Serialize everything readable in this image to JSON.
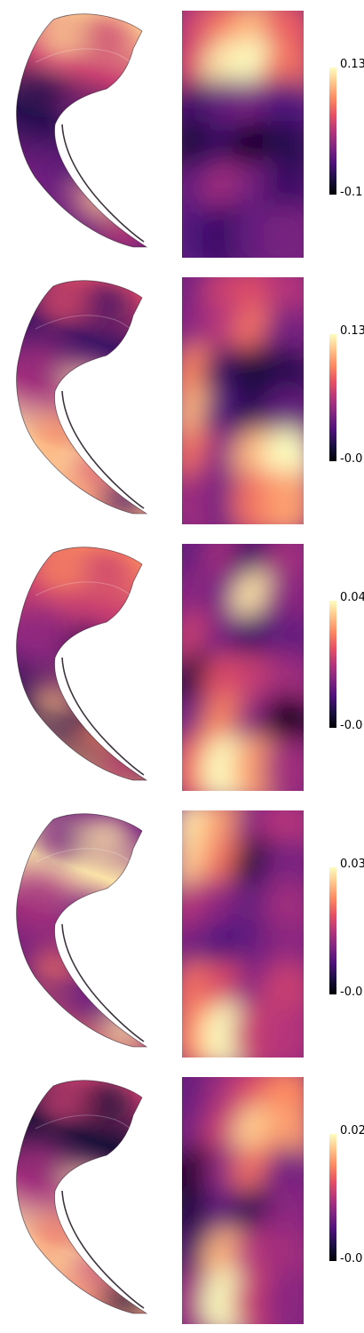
{
  "colormap": [
    "#000004",
    "#1c1044",
    "#4f127b",
    "#812581",
    "#b5367a",
    "#e55064",
    "#fb8761",
    "#fec287",
    "#fcfdbf"
  ],
  "panels": [
    {
      "colorbar": {
        "max_label": "0.13",
        "min_label": "-0.1"
      },
      "surface_pattern": [
        0.9,
        0.55,
        0.15,
        0.35,
        0.3
      ],
      "map_pattern": [
        [
          0.55,
          0.7,
          0.85,
          0.65
        ],
        [
          0.6,
          0.95,
          1.0,
          0.7
        ],
        [
          0.2,
          0.3,
          0.35,
          0.25
        ],
        [
          0.1,
          0.2,
          0.05,
          0.15
        ],
        [
          0.3,
          0.45,
          0.35,
          0.2
        ],
        [
          0.25,
          0.2,
          0.3,
          0.35
        ]
      ]
    },
    {
      "colorbar": {
        "max_label": "0.13",
        "min_label": "-0.0"
      },
      "surface_pattern": [
        0.6,
        0.2,
        0.45,
        0.95,
        0.75
      ],
      "map_pattern": [
        [
          0.35,
          0.55,
          0.6,
          0.5
        ],
        [
          0.4,
          0.5,
          0.7,
          0.35
        ],
        [
          0.75,
          0.2,
          0.1,
          0.15
        ],
        [
          0.85,
          0.25,
          0.15,
          0.3
        ],
        [
          0.7,
          0.4,
          0.85,
          1.0
        ],
        [
          0.45,
          0.35,
          0.7,
          0.8
        ]
      ]
    },
    {
      "colorbar": {
        "max_label": "0.04",
        "min_label": "-0.0"
      },
      "surface_pattern": [
        0.75,
        0.55,
        0.4,
        0.15,
        0.85
      ],
      "map_pattern": [
        [
          0.3,
          0.45,
          0.2,
          0.45
        ],
        [
          0.4,
          0.35,
          0.95,
          0.4
        ],
        [
          0.55,
          0.35,
          0.2,
          0.3
        ],
        [
          0.1,
          0.6,
          0.55,
          0.45
        ],
        [
          0.35,
          0.75,
          0.4,
          0.05
        ],
        [
          0.7,
          1.0,
          0.8,
          0.45
        ]
      ]
    },
    {
      "colorbar": {
        "max_label": "0.03",
        "min_label": "-0.0"
      },
      "surface_pattern": [
        0.35,
        0.95,
        0.45,
        0.3,
        0.7
      ],
      "map_pattern": [
        [
          0.95,
          0.8,
          0.4,
          0.5
        ],
        [
          0.9,
          0.7,
          0.1,
          0.35
        ],
        [
          0.5,
          0.4,
          0.3,
          0.45
        ],
        [
          0.35,
          0.25,
          0.3,
          0.4
        ],
        [
          0.7,
          0.6,
          0.4,
          0.55
        ],
        [
          0.75,
          1.0,
          0.55,
          0.5
        ]
      ]
    },
    {
      "colorbar": {
        "max_label": "0.02",
        "min_label": "-0.0"
      },
      "surface_pattern": [
        0.55,
        0.1,
        0.45,
        0.95,
        0.7
      ],
      "map_pattern": [
        [
          0.3,
          0.45,
          0.6,
          0.75
        ],
        [
          0.35,
          0.55,
          0.9,
          0.8
        ],
        [
          0.05,
          0.4,
          0.7,
          0.35
        ],
        [
          0.1,
          0.3,
          0.15,
          0.4
        ],
        [
          0.2,
          0.85,
          0.5,
          0.45
        ],
        [
          0.45,
          1.0,
          0.55,
          0.4
        ]
      ]
    }
  ]
}
